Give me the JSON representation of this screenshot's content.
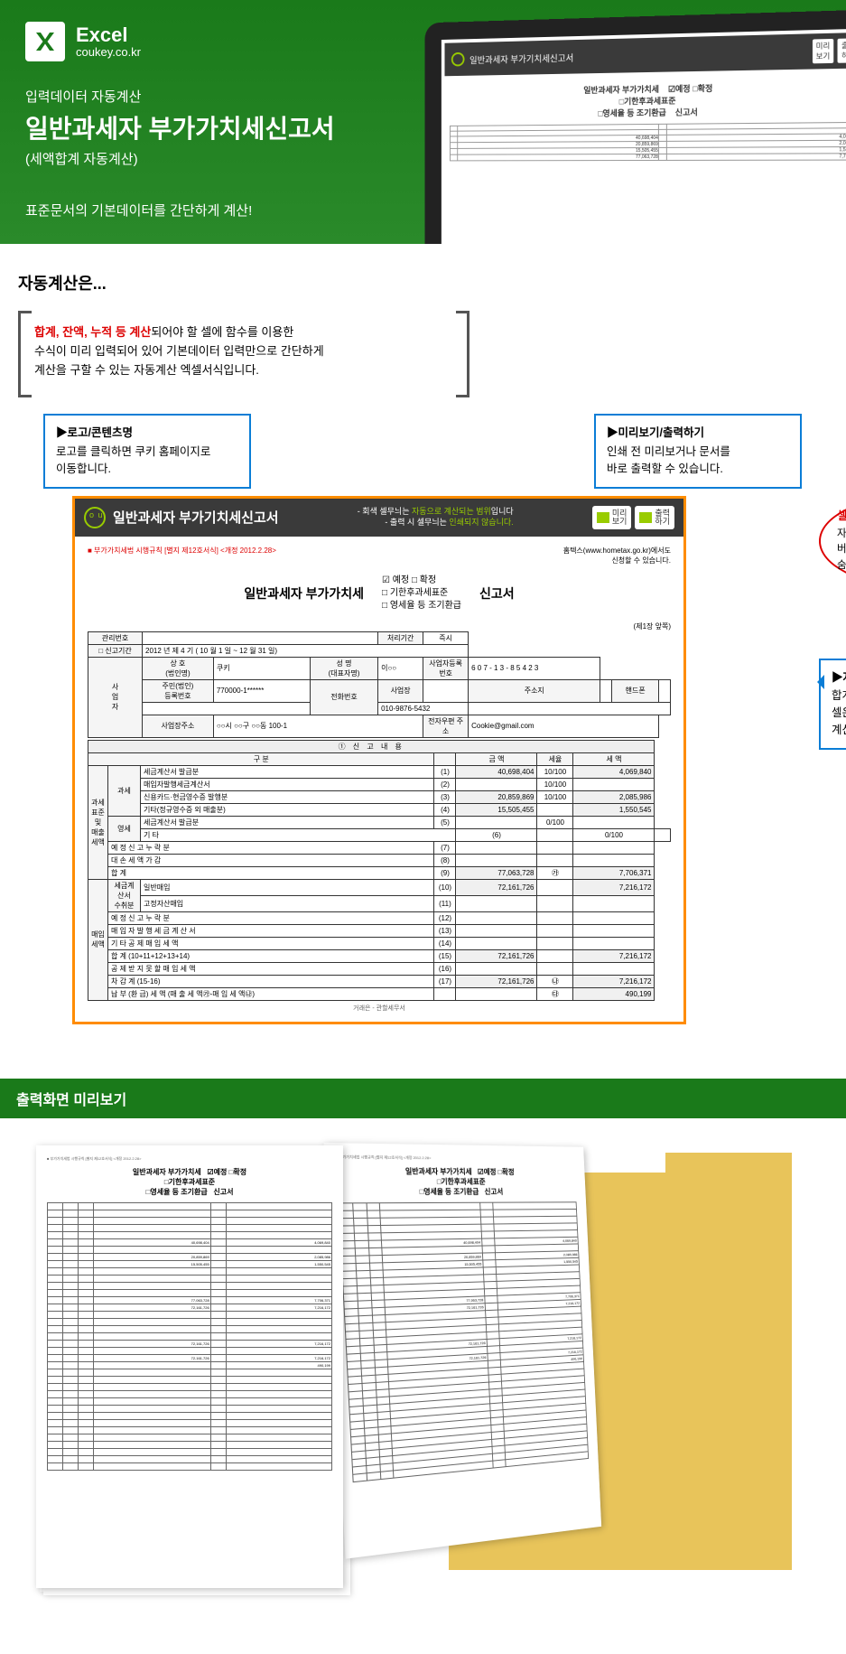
{
  "hero": {
    "brand_name": "Excel",
    "brand_sub": "coukey.co.kr",
    "sub1": "입력데이터 자동계산",
    "title": "일반과세자 부가가치세신고서",
    "sub2": "(세액합계 자동계산)",
    "desc": "표준문서의 기본데이터를 간단하게 계산!",
    "tablet_title": "일반과세자 부가기치세신고서"
  },
  "autocalc": {
    "title": "자동계산은...",
    "explain_red": "합계, 잔액, 누적 등 계산",
    "explain_rest": "되어야 할 셀에 함수를 이용한\n수식이 미리 입력되어 있어 기본데이터 입력만으로 간단하게\n계산을 구할 수 있는 자동계산 엑셀서식입니다.",
    "c1_title": "▶로고/콘텐츠명",
    "c1_body": "로고를 클릭하면 쿠키 홈페이지로\n이동합니다.",
    "c2_title": "▶미리보기/출력하기",
    "c2_body": "인쇄 전 미리보거나 문서를\n바로 출력할 수 있습니다.",
    "c3_title": "셀무늬 미 인쇄",
    "c3_body": "자동계산되는 회색 무늬는\n버튼을 클릭하면 자동으로\n숨김처리 됩니다.",
    "c4_title": "▶자동계산 화면",
    "c4_body": "합계, 잔액, 누적 등 회색 무늬의\n셀은 수식이 포함되어 자동으로\n계산됩니다."
  },
  "form": {
    "top_title": "일반과세자 부가기치세신고서",
    "notice1": "- 회색 셀무늬는 ",
    "notice1g": "자동으로 계산되는 범위",
    "notice1b": "입니다",
    "notice2": "- 출력 시 셀무늬는 ",
    "notice2g": "인쇄되지 않습니다.",
    "btn1": "미리\n보기",
    "btn2": "출력\n하기",
    "meta_left": "■ 부가가치세법 시행규칙 [별지 제12호서식] <개정 2012.2.28>",
    "meta_right1": "홈텍스(www.hometax.go.kr)에서도",
    "meta_right2": "신청할 수 있습니다.",
    "doc_main": "일반과세자 부가가치세",
    "chk1": "☑ 예정  □ 확정",
    "chk2": "□ 기한후과세표준",
    "chk3": "□ 영세율 등 조기환급",
    "doc_report": "신고서",
    "page_num": "(제1장 앞쪽)",
    "header_rows": {
      "r1": [
        "관리번호",
        "",
        "",
        "",
        "처리기간",
        "즉시"
      ],
      "r2_label": "□ 신고기간",
      "r2_val": "2012 년   제 4 기  ( 10  월  1  일 ~  12  월  31  일)",
      "info": [
        [
          "상 호\n(법인명)",
          "쿠키",
          "성  명\n(대표자명)",
          "이○○",
          "사업자등록번호",
          "6|0|7|-|1|3|-|8|5|4|2|3"
        ],
        [
          "주민(법인)\n등록번호",
          "770000-1******",
          "전화번호",
          "사업장",
          "",
          "주소지",
          "",
          "핸드폰",
          ""
        ],
        [
          "",
          "",
          "",
          "010-9876-5432",
          "",
          "",
          "",
          "",
          ""
        ],
        [
          "사업장주소",
          "○○시 ○○구 ○○동 100-1",
          "",
          "전자우편 주소",
          "",
          "Cookie@gmail.com"
        ]
      ]
    },
    "section1_title": "①  신  고  내  용",
    "cols": [
      "구        분",
      "",
      "금      액",
      "세율",
      "세    액"
    ],
    "rows": [
      {
        "g": "과세\n표준\n및\n매출\n세액",
        "sub": "과세",
        "label": "세금계산서 발급분",
        "n": "(1)",
        "amt": "40,698,404",
        "rate": "10/100",
        "tax": "4,069,840"
      },
      {
        "label": "매입자발행세금계산서",
        "n": "(2)",
        "amt": "",
        "rate": "10/100",
        "tax": ""
      },
      {
        "label": "신용카드·현금영수증 발행분",
        "n": "(3)",
        "amt": "20,859,869",
        "rate": "10/100",
        "tax": "2,085,986"
      },
      {
        "label": "기타(정규영수증 외 매출분)",
        "n": "(4)",
        "amt": "15,505,455",
        "rate": "",
        "tax": "1,550,545"
      },
      {
        "sub": "영세",
        "label": "세금계산서 발급분",
        "n": "(5)",
        "amt": "",
        "rate": "0/100",
        "tax": ""
      },
      {
        "label": "기 타",
        "n": "(6)",
        "amt": "",
        "rate": "0/100",
        "tax": ""
      },
      {
        "label": "예  정  신  고  누  락  분",
        "n": "(7)",
        "amt": "",
        "rate": "",
        "tax": ""
      },
      {
        "label": "대  손  세  액  가  감",
        "n": "(8)",
        "amt": "",
        "rate": "",
        "tax": ""
      },
      {
        "label": "합          계",
        "n": "(9)",
        "amt": "77,063,728",
        "rate": "㉮",
        "tax": "7,706,371"
      },
      {
        "g": "매입\n세액",
        "sub": "세금계산서\n수취분",
        "label": "일반매입",
        "n": "(10)",
        "amt": "72,161,726",
        "rate": "",
        "tax": "7,216,172"
      },
      {
        "label": "고정자산매입",
        "n": "(11)",
        "amt": "",
        "rate": "",
        "tax": ""
      },
      {
        "label": "예  정  신  고  누  락  분",
        "n": "(12)",
        "amt": "",
        "rate": "",
        "tax": ""
      },
      {
        "label": "매 입 자 발 행 세 금 계 산 서",
        "n": "(13)",
        "amt": "",
        "rate": "",
        "tax": ""
      },
      {
        "label": "기 타  공 제  매 입 세 액",
        "n": "(14)",
        "amt": "",
        "rate": "",
        "tax": ""
      },
      {
        "label": "합    계  (10+11+12+13+14)",
        "n": "(15)",
        "amt": "72,161,726",
        "rate": "",
        "tax": "7,216,172"
      },
      {
        "label": "공 제 받 지  못 할  매 입 세 액",
        "n": "(16)",
        "amt": "",
        "rate": "",
        "tax": ""
      },
      {
        "label": "차    감    계  (15-16)",
        "n": "(17)",
        "amt": "72,161,726",
        "rate": "㉯",
        "tax": "7,216,172"
      },
      {
        "label": "납 부 (환 급) 세 액  (매 출 세 액㉮-매 입 세 액㉯)",
        "n": "",
        "amt": "",
        "rate": "㉰",
        "tax": "490,199"
      }
    ]
  },
  "preview_title": "출력화면 미리보기",
  "colors": {
    "green": "#1a7a1a",
    "orange": "#ff8c00",
    "blue": "#0a7dd6",
    "red": "#d00000",
    "lime": "#99cc00",
    "folder": "#e8c45a"
  }
}
